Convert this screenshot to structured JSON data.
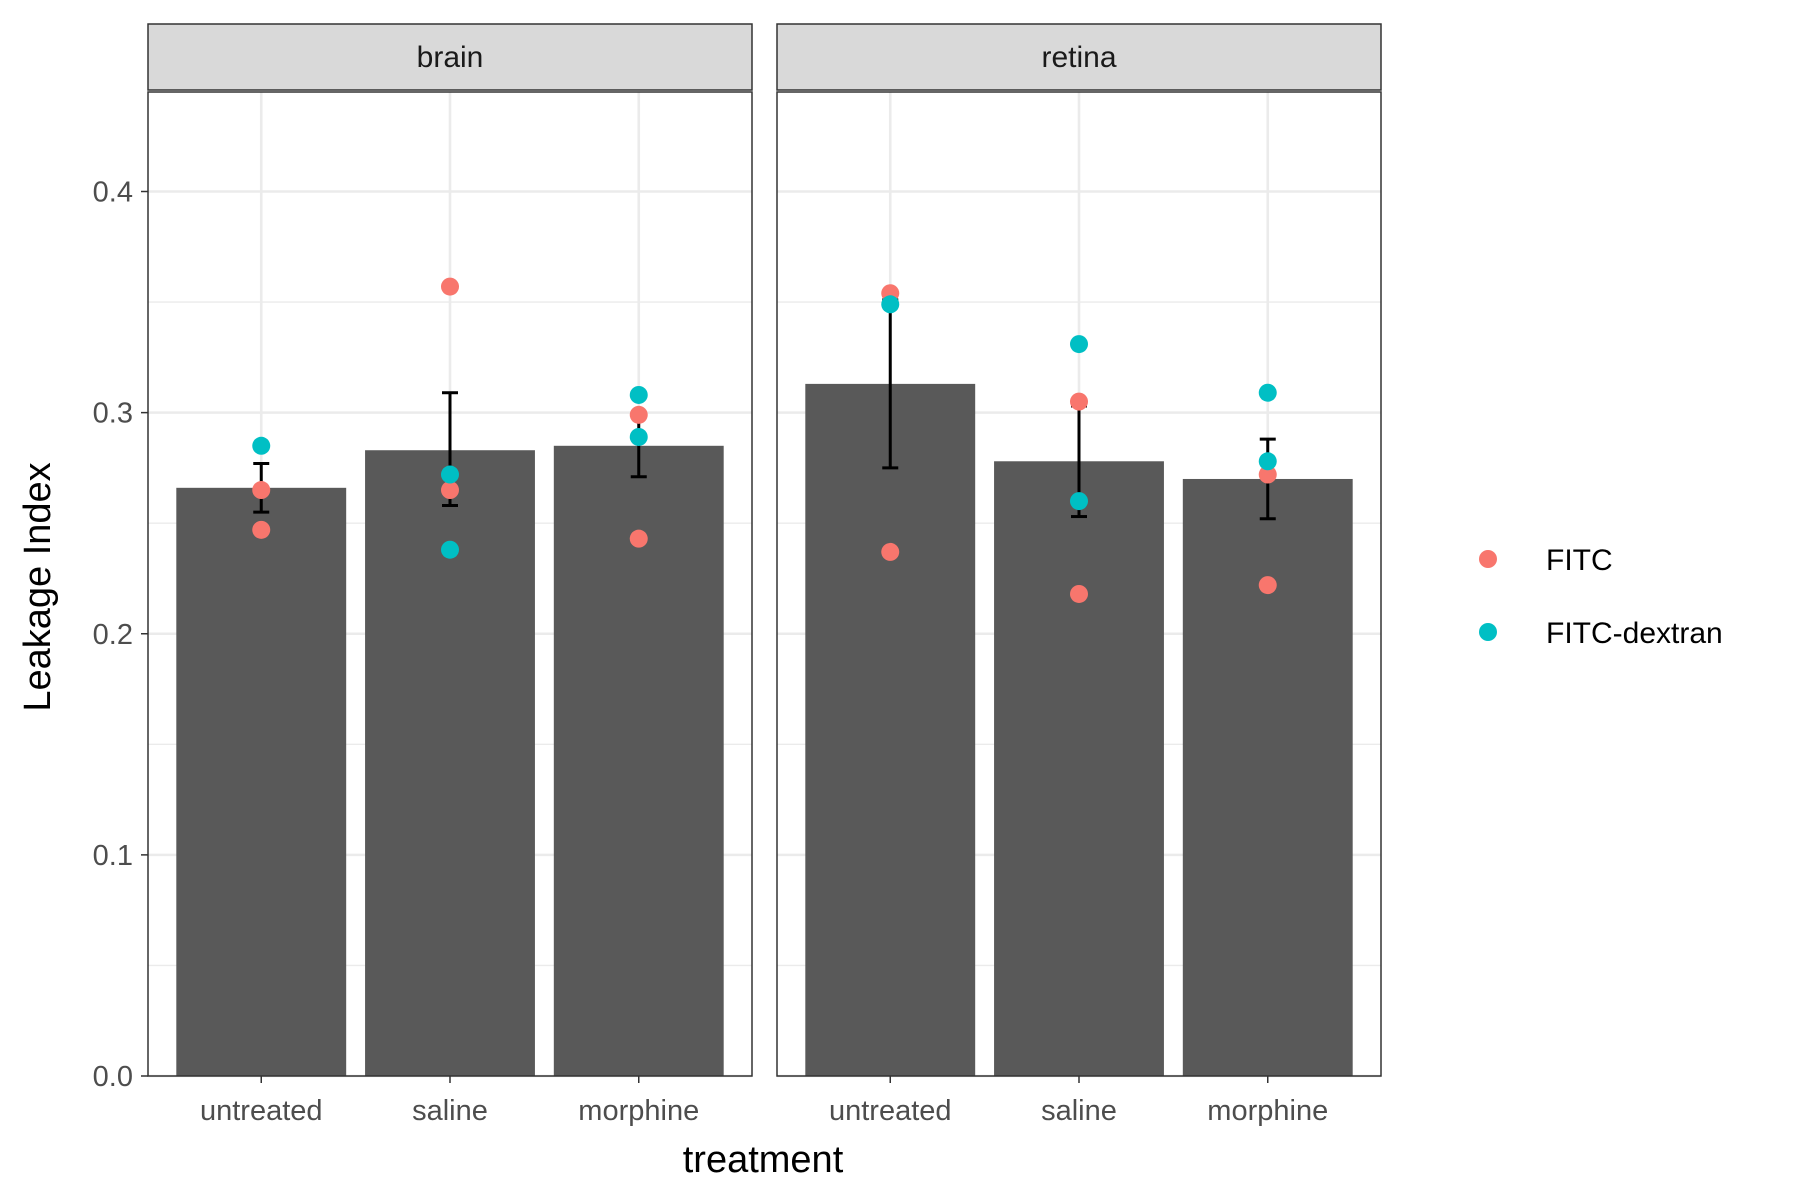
{
  "chart_data": {
    "type": "bar",
    "xlabel": "treatment",
    "ylabel": "Leakage Index",
    "ylim": [
      0,
      0.445
    ],
    "yticks": [
      0.0,
      0.1,
      0.2,
      0.3,
      0.4
    ],
    "ytick_labels": [
      "0.0",
      "0.1",
      "0.2",
      "0.3",
      "0.4"
    ],
    "grid": true,
    "legend_position": "right",
    "categories": [
      "untreated",
      "saline",
      "morphine"
    ],
    "panels": [
      {
        "name": "brain",
        "bars": [
          0.266,
          0.283,
          0.285
        ],
        "error_low": [
          0.255,
          0.258,
          0.271
        ],
        "error_high": [
          0.277,
          0.309,
          0.298
        ],
        "points": [
          {
            "category": "untreated",
            "series": "FITC",
            "value": 0.265
          },
          {
            "category": "untreated",
            "series": "FITC",
            "value": 0.247
          },
          {
            "category": "untreated",
            "series": "FITC-dextran",
            "value": 0.285
          },
          {
            "category": "saline",
            "series": "FITC",
            "value": 0.357
          },
          {
            "category": "saline",
            "series": "FITC",
            "value": 0.265
          },
          {
            "category": "saline",
            "series": "FITC-dextran",
            "value": 0.272
          },
          {
            "category": "saline",
            "series": "FITC-dextran",
            "value": 0.238
          },
          {
            "category": "morphine",
            "series": "FITC",
            "value": 0.299
          },
          {
            "category": "morphine",
            "series": "FITC",
            "value": 0.243
          },
          {
            "category": "morphine",
            "series": "FITC-dextran",
            "value": 0.308
          },
          {
            "category": "morphine",
            "series": "FITC-dextran",
            "value": 0.289
          }
        ]
      },
      {
        "name": "retina",
        "bars": [
          0.313,
          0.278,
          0.27
        ],
        "error_low": [
          0.275,
          0.253,
          0.252
        ],
        "error_high": [
          0.351,
          0.303,
          0.288
        ],
        "points": [
          {
            "category": "untreated",
            "series": "FITC",
            "value": 0.354
          },
          {
            "category": "untreated",
            "series": "FITC",
            "value": 0.237
          },
          {
            "category": "untreated",
            "series": "FITC-dextran",
            "value": 0.349
          },
          {
            "category": "saline",
            "series": "FITC",
            "value": 0.305
          },
          {
            "category": "saline",
            "series": "FITC",
            "value": 0.218
          },
          {
            "category": "saline",
            "series": "FITC-dextran",
            "value": 0.331
          },
          {
            "category": "saline",
            "series": "FITC-dextran",
            "value": 0.26
          },
          {
            "category": "morphine",
            "series": "FITC",
            "value": 0.272
          },
          {
            "category": "morphine",
            "series": "FITC",
            "value": 0.222
          },
          {
            "category": "morphine",
            "series": "FITC-dextran",
            "value": 0.309
          },
          {
            "category": "morphine",
            "series": "FITC-dextran",
            "value": 0.278
          }
        ]
      }
    ],
    "series": [
      {
        "name": "FITC",
        "color": "#F8766D"
      },
      {
        "name": "FITC-dextran",
        "color": "#00BFC4"
      }
    ],
    "colors": {
      "bar": "#595959",
      "grid": "#ebebeb",
      "strip_fill": "#d9d9d9",
      "panel_border": "#333333",
      "errorbar": "#000000"
    }
  }
}
